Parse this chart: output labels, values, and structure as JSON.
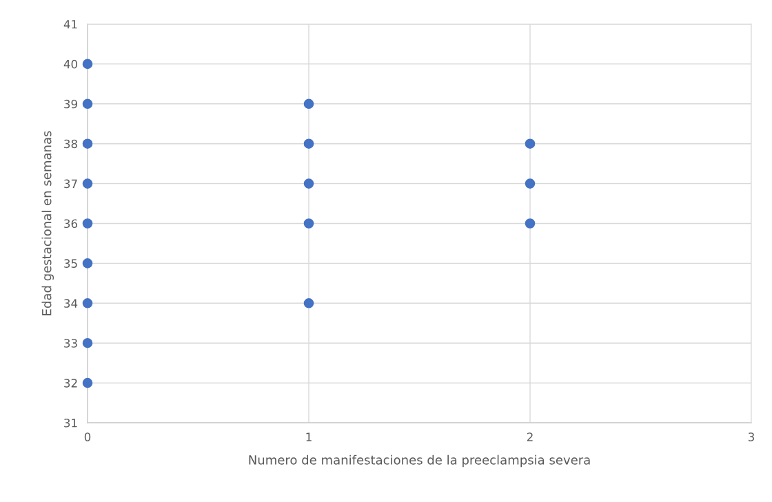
{
  "chart_data": {
    "type": "scatter",
    "xlabel": "Numero de manifestaciones de la preeclampsia severa",
    "ylabel": "Edad gestacional en semanas",
    "series": [
      {
        "color": "#4472c4",
        "x": [
          0,
          0,
          0,
          0,
          0,
          0,
          0,
          0,
          0,
          1,
          1,
          1,
          1,
          1,
          2,
          2,
          2
        ],
        "values": [
          32,
          33,
          34,
          35,
          36,
          37,
          38,
          39,
          40,
          34,
          36,
          37,
          38,
          39,
          36,
          37,
          38
        ]
      }
    ],
    "xlim": [
      0,
      3
    ],
    "xticks": [
      0,
      1,
      2,
      3
    ],
    "ylim": [
      31,
      41
    ],
    "yticks": [
      31,
      32,
      33,
      34,
      35,
      36,
      37,
      38,
      39,
      40,
      41
    ],
    "grid": true,
    "marker": "circle"
  }
}
